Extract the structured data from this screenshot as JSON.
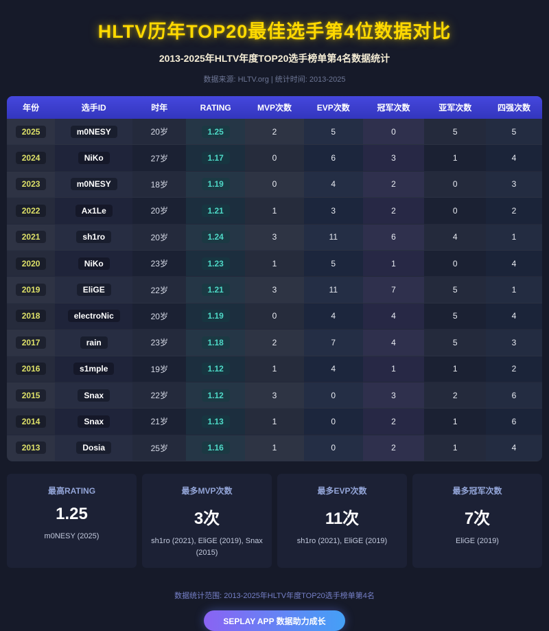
{
  "header": {
    "title": "HLTV历年TOP20最佳选手第4位数据对比",
    "subtitle": "2013-2025年HLTV年度TOP20选手榜单第4名数据统计",
    "source_line": "数据来源: HLTV.org | 统计时间: 2013-2025"
  },
  "table": {
    "columns": [
      "年份",
      "选手ID",
      "时年",
      "RATING",
      "MVP次数",
      "EVP次数",
      "冠军次数",
      "亚军次数",
      "四强次数"
    ],
    "rows": [
      {
        "year": "2025",
        "player": "m0NESY",
        "age": "20岁",
        "rating": "1.25",
        "mvp": "2",
        "evp": "5",
        "champion": "0",
        "runnerup": "5",
        "semifinal": "5"
      },
      {
        "year": "2024",
        "player": "NiKo",
        "age": "27岁",
        "rating": "1.17",
        "mvp": "0",
        "evp": "6",
        "champion": "3",
        "runnerup": "1",
        "semifinal": "4"
      },
      {
        "year": "2023",
        "player": "m0NESY",
        "age": "18岁",
        "rating": "1.19",
        "mvp": "0",
        "evp": "4",
        "champion": "2",
        "runnerup": "0",
        "semifinal": "3"
      },
      {
        "year": "2022",
        "player": "Ax1Le",
        "age": "20岁",
        "rating": "1.21",
        "mvp": "1",
        "evp": "3",
        "champion": "2",
        "runnerup": "0",
        "semifinal": "2"
      },
      {
        "year": "2021",
        "player": "sh1ro",
        "age": "20岁",
        "rating": "1.24",
        "mvp": "3",
        "evp": "11",
        "champion": "6",
        "runnerup": "4",
        "semifinal": "1"
      },
      {
        "year": "2020",
        "player": "NiKo",
        "age": "23岁",
        "rating": "1.23",
        "mvp": "1",
        "evp": "5",
        "champion": "1",
        "runnerup": "0",
        "semifinal": "4"
      },
      {
        "year": "2019",
        "player": "EliGE",
        "age": "22岁",
        "rating": "1.21",
        "mvp": "3",
        "evp": "11",
        "champion": "7",
        "runnerup": "5",
        "semifinal": "1"
      },
      {
        "year": "2018",
        "player": "electroNic",
        "age": "20岁",
        "rating": "1.19",
        "mvp": "0",
        "evp": "4",
        "champion": "4",
        "runnerup": "5",
        "semifinal": "4"
      },
      {
        "year": "2017",
        "player": "rain",
        "age": "23岁",
        "rating": "1.18",
        "mvp": "2",
        "evp": "7",
        "champion": "4",
        "runnerup": "5",
        "semifinal": "3"
      },
      {
        "year": "2016",
        "player": "s1mple",
        "age": "19岁",
        "rating": "1.12",
        "mvp": "1",
        "evp": "4",
        "champion": "1",
        "runnerup": "1",
        "semifinal": "2"
      },
      {
        "year": "2015",
        "player": "Snax",
        "age": "22岁",
        "rating": "1.12",
        "mvp": "3",
        "evp": "0",
        "champion": "3",
        "runnerup": "2",
        "semifinal": "6"
      },
      {
        "year": "2014",
        "player": "Snax",
        "age": "21岁",
        "rating": "1.13",
        "mvp": "1",
        "evp": "0",
        "champion": "2",
        "runnerup": "1",
        "semifinal": "6"
      },
      {
        "year": "2013",
        "player": "Dosia",
        "age": "25岁",
        "rating": "1.16",
        "mvp": "1",
        "evp": "0",
        "champion": "2",
        "runnerup": "1",
        "semifinal": "4"
      }
    ]
  },
  "summary_cards": [
    {
      "label": "最高RATING",
      "value": "1.25",
      "detail": "m0NESY (2025)"
    },
    {
      "label": "最多MVP次数",
      "value": "3次",
      "detail": "sh1ro (2021), EliGE (2019), Snax (2015)"
    },
    {
      "label": "最多EVP次数",
      "value": "11次",
      "detail": "sh1ro (2021), EliGE (2019)"
    },
    {
      "label": "最多冠军次数",
      "value": "7次",
      "detail": "EliGE (2019)"
    }
  ],
  "footer": {
    "note": "数据统计范围: 2013-2025年HLTV年度TOP20选手榜单第4名",
    "button_label": "SEPLAY APP 数据助力成长"
  },
  "colors": {
    "page_bg": "#161a29",
    "title_yellow": "#ffd900",
    "table_header_blue": "#3a3cc9",
    "year_text": "#dde068",
    "rating_teal": "#4ed8c6",
    "card_bg": "#1c2135",
    "card_label": "#93a5d8",
    "button_gradient_start": "#8a63f3",
    "button_gradient_end": "#44a0f6"
  },
  "chart_data": {
    "type": "table",
    "title": "HLTV历年TOP20最佳选手第4位数据对比",
    "subtitle": "2013-2025年HLTV年度TOP20选手榜单第4名数据统计",
    "columns": [
      "年份",
      "选手ID",
      "时年",
      "RATING",
      "MVP次数",
      "EVP次数",
      "冠军次数",
      "亚军次数",
      "四强次数"
    ],
    "rows": [
      [
        "2025",
        "m0NESY",
        "20岁",
        1.25,
        2,
        5,
        0,
        5,
        5
      ],
      [
        "2024",
        "NiKo",
        "27岁",
        1.17,
        0,
        6,
        3,
        1,
        4
      ],
      [
        "2023",
        "m0NESY",
        "18岁",
        1.19,
        0,
        4,
        2,
        0,
        3
      ],
      [
        "2022",
        "Ax1Le",
        "20岁",
        1.21,
        1,
        3,
        2,
        0,
        2
      ],
      [
        "2021",
        "sh1ro",
        "20岁",
        1.24,
        3,
        11,
        6,
        4,
        1
      ],
      [
        "2020",
        "NiKo",
        "23岁",
        1.23,
        1,
        5,
        1,
        0,
        4
      ],
      [
        "2019",
        "EliGE",
        "22岁",
        1.21,
        3,
        11,
        7,
        5,
        1
      ],
      [
        "2018",
        "electroNic",
        "20岁",
        1.19,
        0,
        4,
        4,
        5,
        4
      ],
      [
        "2017",
        "rain",
        "23岁",
        1.18,
        2,
        7,
        4,
        5,
        3
      ],
      [
        "2016",
        "s1mple",
        "19岁",
        1.12,
        1,
        4,
        1,
        1,
        2
      ],
      [
        "2015",
        "Snax",
        "22岁",
        1.12,
        3,
        0,
        3,
        2,
        6
      ],
      [
        "2014",
        "Snax",
        "21岁",
        1.13,
        1,
        0,
        2,
        1,
        6
      ],
      [
        "2013",
        "Dosia",
        "25岁",
        1.16,
        1,
        0,
        2,
        1,
        4
      ]
    ],
    "highlights": {
      "max_rating": {
        "value": 1.25,
        "who": "m0NESY (2025)"
      },
      "max_mvp": {
        "value": 3,
        "who": "sh1ro (2021), EliGE (2019), Snax (2015)"
      },
      "max_evp": {
        "value": 11,
        "who": "sh1ro (2021), EliGE (2019)"
      },
      "max_champion": {
        "value": 7,
        "who": "EliGE (2019)"
      }
    }
  }
}
